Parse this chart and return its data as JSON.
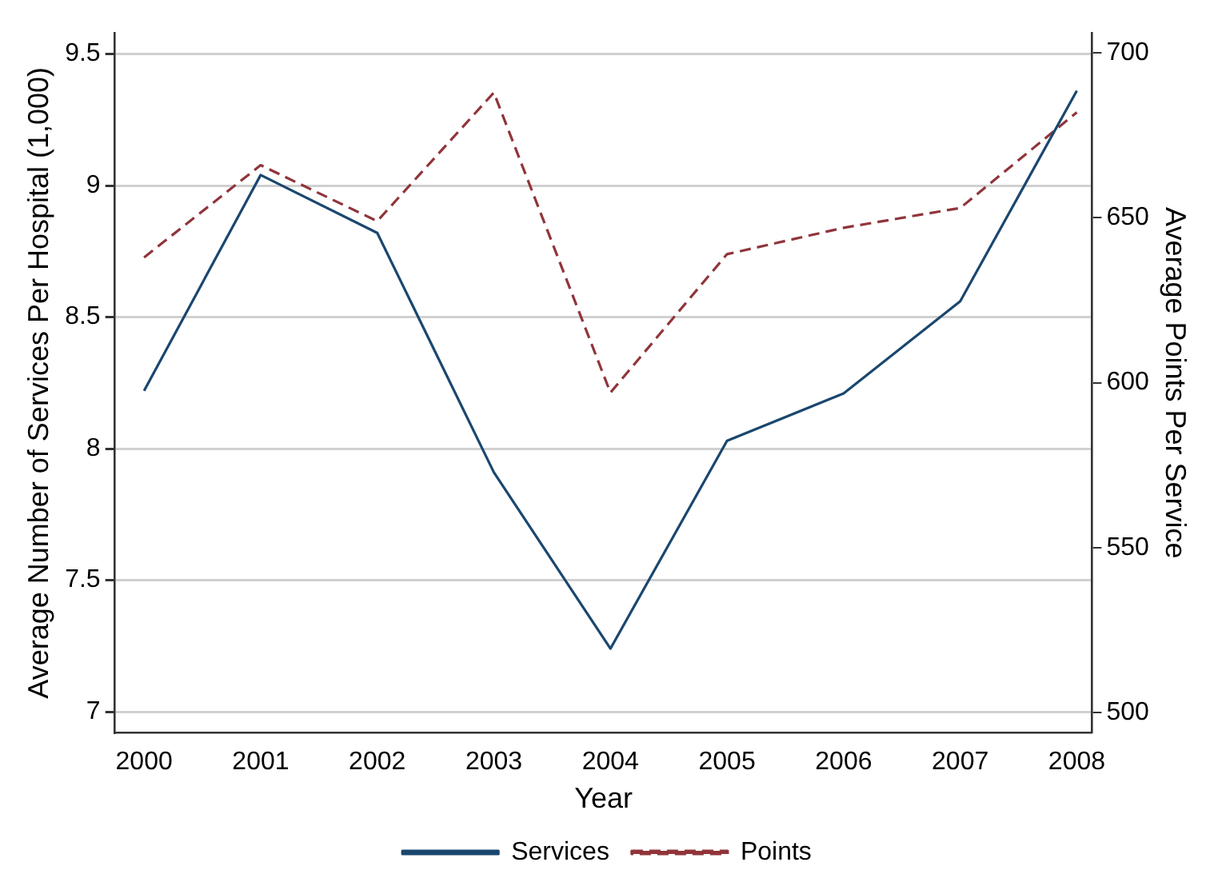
{
  "chart_data": {
    "type": "line",
    "xlabel": "Year",
    "ylabel": "Average Number of Services Per Hospital (1,000)",
    "y2label": "Average Points Per Service",
    "x": [
      2000,
      2001,
      2002,
      2003,
      2004,
      2005,
      2006,
      2007,
      2008
    ],
    "xlim": [
      1999.75,
      2008.13
    ],
    "xticks": [
      2000,
      2001,
      2002,
      2003,
      2004,
      2005,
      2006,
      2007,
      2008
    ],
    "ylim": [
      6.92,
      9.58
    ],
    "yticks": [
      7,
      7.5,
      8,
      8.5,
      9,
      9.5
    ],
    "y2lim": [
      493.8,
      706.1
    ],
    "y2ticks": [
      500,
      550,
      600,
      650,
      700
    ],
    "grid": "y",
    "legend": "bottom",
    "marker": "none",
    "series": [
      {
        "name": "Services",
        "color": "#1a476f",
        "line_style": "solid",
        "values": [
          8.22,
          9.04,
          8.82,
          7.91,
          7.24,
          8.03,
          8.21,
          8.56,
          9.36
        ]
      },
      {
        "name": "Points",
        "color": "#90353b",
        "line_style": "dashed",
        "axis": "y2",
        "values": [
          638,
          666,
          649,
          688,
          597,
          639,
          647,
          653,
          682
        ]
      }
    ]
  }
}
